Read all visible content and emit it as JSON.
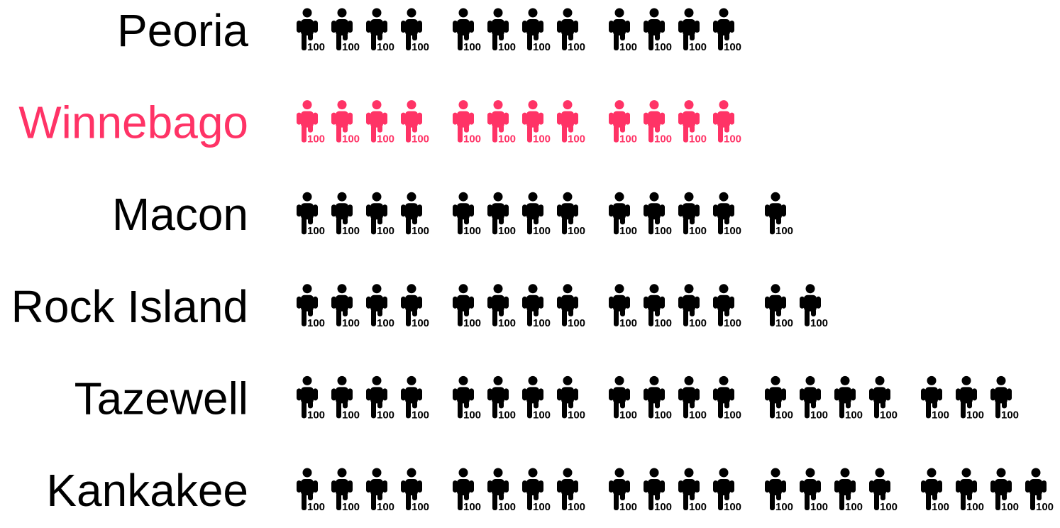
{
  "chart_data": {
    "type": "pictograph",
    "unit_label": "100",
    "icon": "person-icon",
    "units_per_icon": 100,
    "group_size": 4,
    "categories": [
      "Peoria",
      "Winnebago",
      "Macon",
      "Rock Island",
      "Tazewell",
      "Kankakee"
    ],
    "values": [
      1200,
      1200,
      1300,
      1400,
      1900,
      2000
    ],
    "highlighted": "Winnebago"
  },
  "colors": {
    "default": "#000000",
    "highlight": "#ff3366",
    "background": "#ffffff"
  }
}
